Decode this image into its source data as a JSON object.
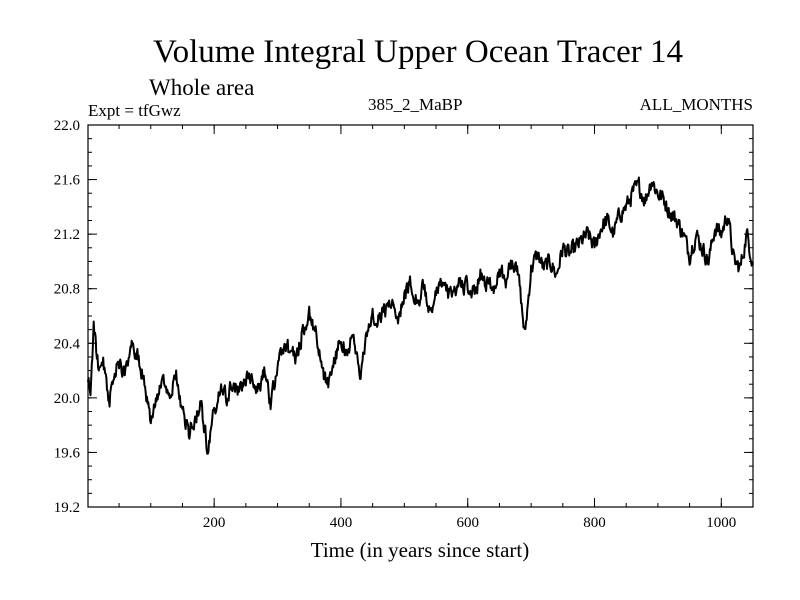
{
  "chart_data": {
    "type": "line",
    "title": "Volume Integral Upper Ocean Tracer 14",
    "subtitle": "Whole area",
    "experiment_label": "Expt = tfGwz",
    "run_label": "385_2_MaBP",
    "months_label": "ALL_MONTHS",
    "xlabel": "Time (in years since start)",
    "ylabel": "",
    "xlim": [
      1,
      1050
    ],
    "ylim": [
      19.2,
      22.0
    ],
    "x_ticks": [
      200,
      400,
      600,
      800,
      1000
    ],
    "y_ticks": [
      19.2,
      19.6,
      20.0,
      20.4,
      20.8,
      21.2,
      21.6,
      22.0
    ],
    "y_tick_labels": [
      "19.2",
      "19.6",
      "20.0",
      "20.4",
      "20.8",
      "21.2",
      "21.6",
      "22.0"
    ],
    "grid": false,
    "line_color": "#000000",
    "noise_seed": 14,
    "noise_amplitude": 0.055,
    "series": [
      {
        "name": "tracer14",
        "x": [
          1,
          5,
          10,
          15,
          20,
          25,
          30,
          35,
          40,
          45,
          50,
          60,
          70,
          80,
          90,
          100,
          110,
          120,
          130,
          140,
          150,
          160,
          170,
          180,
          190,
          200,
          210,
          220,
          230,
          240,
          250,
          260,
          270,
          280,
          290,
          300,
          310,
          320,
          330,
          340,
          350,
          360,
          370,
          380,
          390,
          400,
          410,
          420,
          430,
          440,
          450,
          460,
          470,
          480,
          490,
          500,
          510,
          520,
          530,
          540,
          550,
          560,
          570,
          580,
          590,
          600,
          610,
          620,
          630,
          640,
          650,
          660,
          670,
          680,
          690,
          700,
          710,
          720,
          730,
          740,
          750,
          760,
          770,
          780,
          790,
          800,
          810,
          820,
          830,
          840,
          850,
          860,
          870,
          880,
          890,
          900,
          910,
          920,
          930,
          940,
          950,
          960,
          970,
          980,
          990,
          1000,
          1010,
          1020,
          1030,
          1040,
          1050
        ],
        "values": [
          20.15,
          20.0,
          20.55,
          20.3,
          20.2,
          20.25,
          20.1,
          19.95,
          20.15,
          20.2,
          20.25,
          20.2,
          20.4,
          20.3,
          20.1,
          19.8,
          20.0,
          20.1,
          20.05,
          20.15,
          19.9,
          19.75,
          19.85,
          19.95,
          19.6,
          19.9,
          20.05,
          20.0,
          20.1,
          20.05,
          20.15,
          20.1,
          20.05,
          20.2,
          19.95,
          20.25,
          20.4,
          20.35,
          20.3,
          20.5,
          20.6,
          20.5,
          20.2,
          20.1,
          20.3,
          20.4,
          20.35,
          20.45,
          20.15,
          20.45,
          20.6,
          20.6,
          20.65,
          20.7,
          20.6,
          20.75,
          20.85,
          20.7,
          20.8,
          20.65,
          20.75,
          20.85,
          20.75,
          20.8,
          20.85,
          20.8,
          20.75,
          20.9,
          20.85,
          20.8,
          20.95,
          20.85,
          21.0,
          20.9,
          20.45,
          20.95,
          21.05,
          20.95,
          21.0,
          20.9,
          21.1,
          21.05,
          21.1,
          21.15,
          21.2,
          21.1,
          21.25,
          21.3,
          21.2,
          21.35,
          21.4,
          21.5,
          21.55,
          21.45,
          21.6,
          21.5,
          21.45,
          21.35,
          21.3,
          21.2,
          21.05,
          21.2,
          21.1,
          21.0,
          21.25,
          21.2,
          21.35,
          21.0,
          20.95,
          21.2,
          21.0
        ]
      }
    ]
  }
}
